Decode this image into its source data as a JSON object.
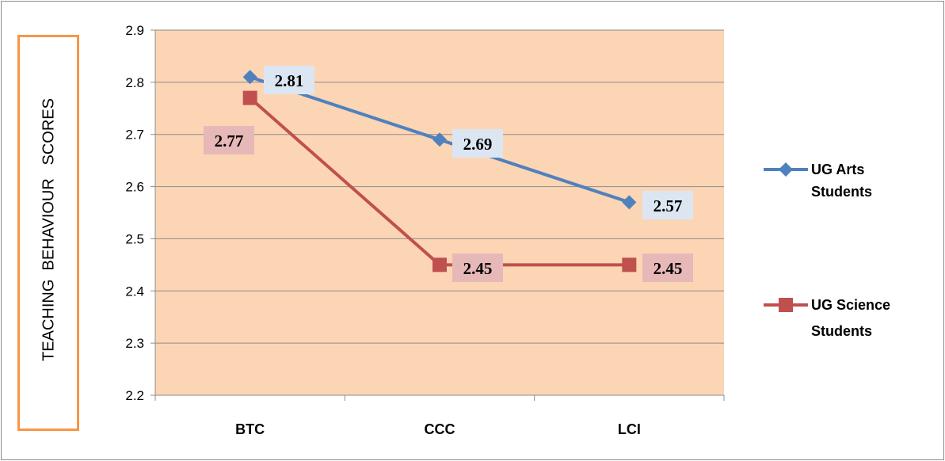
{
  "chart_data": {
    "type": "line",
    "categories": [
      "BTC",
      "CCC",
      "LCI"
    ],
    "ylabel": "TEACHING  BEHAVIOUR   SCORES",
    "xlabel": "",
    "ylim": [
      2.2,
      2.9
    ],
    "yticks": [
      "2.2",
      "2.3",
      "2.4",
      "2.5",
      "2.6",
      "2.7",
      "2.8",
      "2.9"
    ],
    "grid": true,
    "legend_position": "right",
    "plot_background": "#fcd5b5",
    "series": [
      {
        "name_lines": [
          "UG Arts",
          "Students"
        ],
        "values": [
          2.81,
          2.69,
          2.57
        ],
        "labels": [
          "2.81",
          "2.69",
          "2.57"
        ],
        "color": "#4f81bd",
        "label_bg": "#dce6f2",
        "marker": "diamond"
      },
      {
        "name_lines": [
          "UG Science",
          "Students"
        ],
        "values": [
          2.77,
          2.45,
          2.45
        ],
        "labels": [
          "2.77",
          "2.45",
          "2.45"
        ],
        "color": "#c0504d",
        "label_bg": "#e6b9b8",
        "marker": "square"
      }
    ]
  }
}
